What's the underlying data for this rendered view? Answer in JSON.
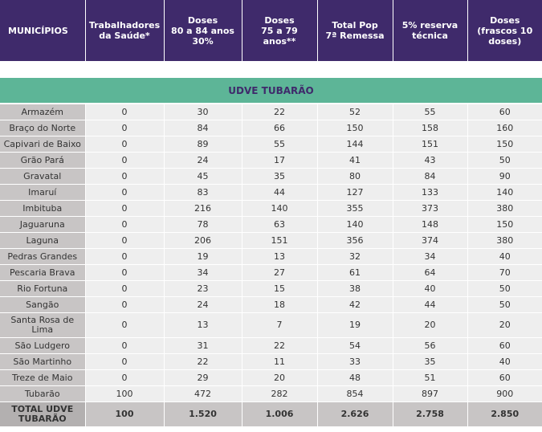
{
  "headers": [
    "MUNICÍPIOS",
    "Trabalhadores\nda Saúde*",
    "Doses\n80 a 84 anos\n30%",
    "Doses\n75 a 79 anos**",
    "Total Pop\n7ª Remessa",
    "5% reserva\ntécnica",
    "Doses\n(frascos 10\ndoses)"
  ],
  "section_title": "UDVE TUBARÃO",
  "rows": [
    [
      "Armazém",
      "0",
      "30",
      "22",
      "52",
      "55",
      "60"
    ],
    [
      "Braço do Norte",
      "0",
      "84",
      "66",
      "150",
      "158",
      "160"
    ],
    [
      "Capivari de Baixo",
      "0",
      "89",
      "55",
      "144",
      "151",
      "150"
    ],
    [
      "Grão Pará",
      "0",
      "24",
      "17",
      "41",
      "43",
      "50"
    ],
    [
      "Gravatal",
      "0",
      "45",
      "35",
      "80",
      "84",
      "90"
    ],
    [
      "Imaruí",
      "0",
      "83",
      "44",
      "127",
      "133",
      "140"
    ],
    [
      "Imbituba",
      "0",
      "216",
      "140",
      "355",
      "373",
      "380"
    ],
    [
      "Jaguaruna",
      "0",
      "78",
      "63",
      "140",
      "148",
      "150"
    ],
    [
      "Laguna",
      "0",
      "206",
      "151",
      "356",
      "374",
      "380"
    ],
    [
      "Pedras Grandes",
      "0",
      "19",
      "13",
      "32",
      "34",
      "40"
    ],
    [
      "Pescaria Brava",
      "0",
      "34",
      "27",
      "61",
      "64",
      "70"
    ],
    [
      "Rio Fortuna",
      "0",
      "23",
      "15",
      "38",
      "40",
      "50"
    ],
    [
      "Sangão",
      "0",
      "24",
      "18",
      "42",
      "44",
      "50"
    ],
    [
      "Santa Rosa de Lima",
      "0",
      "13",
      "7",
      "19",
      "20",
      "20"
    ],
    [
      "São Ludgero",
      "0",
      "31",
      "22",
      "54",
      "56",
      "60"
    ],
    [
      "São Martinho",
      "0",
      "22",
      "11",
      "33",
      "35",
      "40"
    ],
    [
      "Treze de Maio",
      "0",
      "29",
      "20",
      "48",
      "51",
      "60"
    ],
    [
      "Tubarão",
      "100",
      "472",
      "282",
      "854",
      "897",
      "900"
    ]
  ],
  "total": [
    "TOTAL UDVE\nTUBARÃO",
    "100",
    "1.520",
    "1.006",
    "2.626",
    "2.758",
    "2.850"
  ],
  "colors": {
    "header_bg": "#3f2a6b",
    "section_bg": "#5db597",
    "name_bg": "#c8c5c5",
    "cell_bg": "#eeeeee"
  }
}
